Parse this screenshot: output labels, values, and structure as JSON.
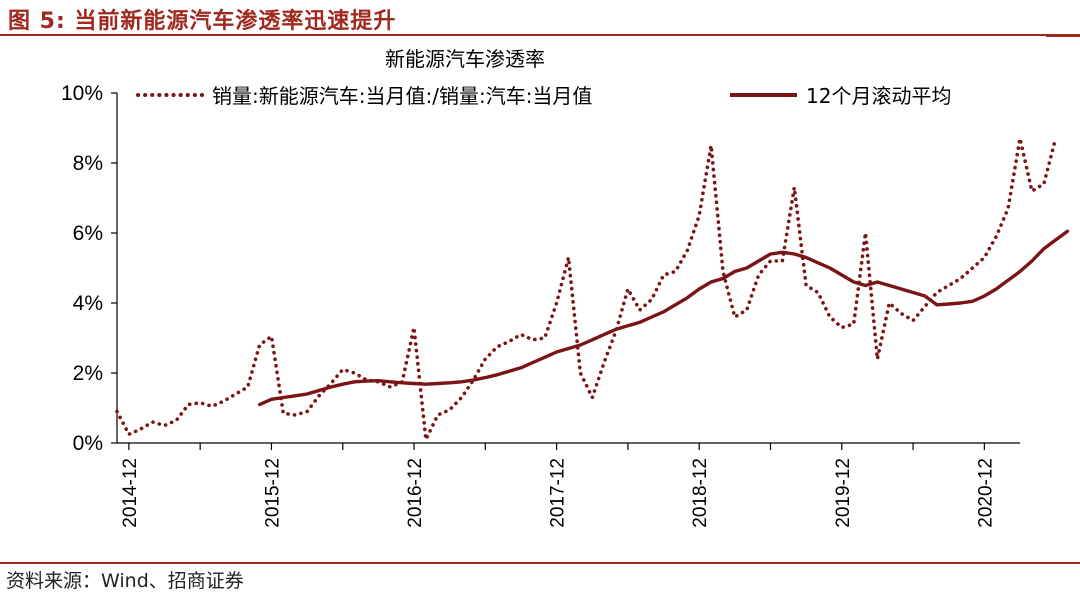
{
  "figure": {
    "title": "图 5:  当前新能源汽车渗透率迅速提升",
    "source": "资料来源：Wind、招商证券"
  },
  "colors": {
    "accent": "#a0281f",
    "series": "#7b1416"
  },
  "chart_data": {
    "type": "line",
    "title": "新能源汽车渗透率",
    "xlabel": "",
    "ylabel": "",
    "x_start": "2014-11",
    "x_end": "2021-03",
    "x_ticks": [
      "2014-12",
      "2015-12",
      "2016-12",
      "2017-12",
      "2018-12",
      "2019-12",
      "2020-12"
    ],
    "y_ticks": [
      "0%",
      "2%",
      "4%",
      "6%",
      "8%",
      "10%"
    ],
    "ylim": [
      0,
      10
    ],
    "grid": false,
    "legend_position": "top",
    "series": [
      {
        "name": "销量:新能源汽车:当月值:/销量:汽车:当月值",
        "style": "dotted",
        "x_start": "2014-11",
        "values": [
          0.9,
          0.25,
          0.4,
          0.6,
          0.5,
          0.65,
          1.1,
          1.15,
          1.05,
          1.2,
          1.4,
          1.6,
          2.8,
          3.05,
          0.85,
          0.8,
          0.9,
          1.35,
          1.7,
          2.1,
          2.0,
          1.8,
          1.75,
          1.6,
          1.75,
          3.3,
          0.1,
          0.8,
          0.95,
          1.3,
          1.8,
          2.4,
          2.75,
          2.9,
          3.1,
          2.95,
          3.0,
          4.0,
          5.3,
          2.0,
          1.3,
          2.3,
          3.2,
          4.4,
          3.8,
          4.1,
          4.8,
          4.9,
          5.5,
          6.5,
          8.5,
          4.9,
          3.6,
          3.8,
          4.8,
          5.2,
          5.2,
          7.3,
          4.5,
          4.3,
          3.6,
          3.3,
          3.4,
          6.0,
          2.4,
          4.0,
          3.7,
          3.5,
          3.9,
          4.3,
          4.5,
          4.7,
          5.0,
          5.3,
          5.9,
          6.7,
          8.7,
          7.2,
          7.4,
          8.7
        ]
      },
      {
        "name": "12个月滚动平均",
        "style": "solid",
        "x_start": "2015-11",
        "values": [
          1.1,
          1.25,
          1.3,
          1.35,
          1.4,
          1.5,
          1.6,
          1.68,
          1.75,
          1.77,
          1.78,
          1.75,
          1.72,
          1.7,
          1.68,
          1.7,
          1.72,
          1.75,
          1.8,
          1.87,
          1.95,
          2.05,
          2.15,
          2.3,
          2.45,
          2.6,
          2.7,
          2.8,
          2.95,
          3.1,
          3.25,
          3.35,
          3.45,
          3.6,
          3.75,
          3.95,
          4.15,
          4.4,
          4.6,
          4.7,
          4.9,
          5.0,
          5.2,
          5.4,
          5.45,
          5.4,
          5.3,
          5.15,
          5.0,
          4.8,
          4.6,
          4.5,
          4.6,
          4.5,
          4.4,
          4.3,
          4.2,
          3.95,
          3.97,
          4.0,
          4.05,
          4.2,
          4.4,
          4.65,
          4.9,
          5.2,
          5.55,
          5.8,
          6.05
        ]
      }
    ]
  }
}
